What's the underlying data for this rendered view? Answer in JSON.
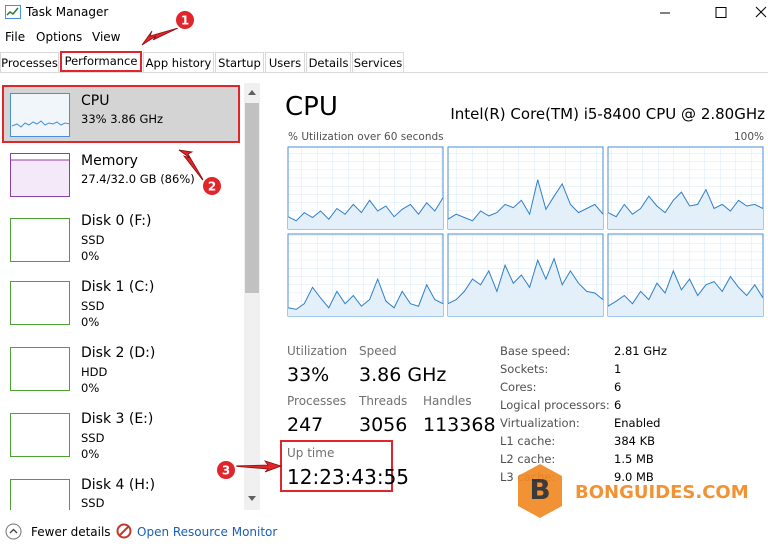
{
  "window": {
    "title": "Task Manager"
  },
  "menu": [
    "File",
    "Options",
    "View"
  ],
  "tabs": [
    "Processes",
    "Performance",
    "App history",
    "Startup",
    "Users",
    "Details",
    "Services"
  ],
  "sidebar": [
    {
      "name": "CPU",
      "detail": "33% 3.86 GHz"
    },
    {
      "name": "Memory",
      "detail": "27.4/32.0 GB (86%)"
    },
    {
      "name": "Disk 0 (F:)",
      "kind": "SSD",
      "usage": "0%"
    },
    {
      "name": "Disk 1 (C:)",
      "kind": "SSD",
      "usage": "0%"
    },
    {
      "name": "Disk 2 (D:)",
      "kind": "HDD",
      "usage": "0%"
    },
    {
      "name": "Disk 3 (E:)",
      "kind": "SSD",
      "usage": "0%"
    },
    {
      "name": "Disk 4 (H:)",
      "kind": "SSD"
    }
  ],
  "cpu": {
    "title": "CPU",
    "model": "Intel(R) Core(TM) i5-8400 CPU @ 2.80GHz",
    "graph_label": "% Utilization over 60 seconds",
    "graph_max": "100%",
    "graphs": {
      "ylim": [
        0,
        100
      ],
      "series": [
        [
          15,
          10,
          20,
          14,
          22,
          12,
          25,
          18,
          30,
          20,
          35,
          22,
          28,
          15,
          24,
          30,
          18,
          32,
          22,
          38
        ],
        [
          12,
          18,
          14,
          10,
          22,
          16,
          20,
          30,
          26,
          35,
          18,
          60,
          24,
          40,
          55,
          30,
          20,
          25,
          30,
          18
        ],
        [
          20,
          15,
          30,
          18,
          25,
          40,
          28,
          20,
          35,
          45,
          28,
          30,
          48,
          25,
          30,
          22,
          35,
          28,
          30,
          25
        ],
        [
          10,
          8,
          15,
          35,
          22,
          10,
          30,
          15,
          25,
          12,
          20,
          45,
          18,
          10,
          30,
          15,
          12,
          38,
          20,
          15
        ],
        [
          15,
          20,
          30,
          45,
          38,
          55,
          30,
          62,
          40,
          50,
          35,
          68,
          45,
          70,
          38,
          55,
          40,
          30,
          28,
          20
        ],
        [
          12,
          18,
          25,
          15,
          30,
          20,
          40,
          28,
          55,
          32,
          45,
          25,
          38,
          42,
          30,
          48,
          35,
          25,
          38,
          22
        ]
      ]
    },
    "stats": [
      {
        "label": "Utilization",
        "value": "33%"
      },
      {
        "label": "Speed",
        "value": "3.86 GHz"
      },
      {
        "label": "Processes",
        "value": "247"
      },
      {
        "label": "Threads",
        "value": "3056"
      },
      {
        "label": "Handles",
        "value": "113368"
      }
    ],
    "uptime": {
      "label": "Up time",
      "value": "12:23:43:55"
    },
    "specs": [
      {
        "label": "Base speed:",
        "value": "2.81 GHz"
      },
      {
        "label": "Sockets:",
        "value": "1"
      },
      {
        "label": "Cores:",
        "value": "6"
      },
      {
        "label": "Logical processors:",
        "value": "6"
      },
      {
        "label": "Virtualization:",
        "value": "Enabled"
      },
      {
        "label": "L1 cache:",
        "value": "384 KB"
      },
      {
        "label": "L2 cache:",
        "value": "1.5 MB"
      },
      {
        "label": "L3 cache:",
        "value": "9.0 MB"
      }
    ]
  },
  "footer": {
    "fewer_details": "Fewer details",
    "resource_monitor": "Open Resource Monitor"
  },
  "annotations": [
    "1",
    "2",
    "3"
  ],
  "watermark": {
    "logo": "B",
    "text": "BONGUIDES.COM"
  }
}
